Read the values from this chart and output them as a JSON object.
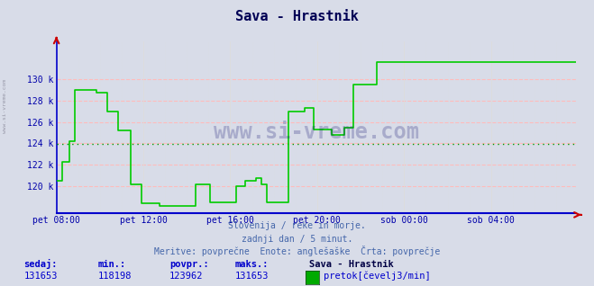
{
  "title": "Sava - Hrastnik",
  "bg_color": "#d8dce8",
  "line_color": "#00cc00",
  "avg_line_color": "#009900",
  "grid_color_h": "#ffbbbb",
  "grid_color_v": "#dddddd",
  "ylabel_color": "#0000aa",
  "xlabel_color": "#0000aa",
  "title_color": "#000055",
  "watermark": "www.si-vreme.com",
  "watermark_color": "#000066",
  "subtitle1": "Slovenija / reke in morje.",
  "subtitle2": "zadnji dan / 5 minut.",
  "subtitle3": "Meritve: povprečne  Enote: anglešaške  Črta: povprečje",
  "subtitle_color": "#4466aa",
  "footer_label1": "sedaj:",
  "footer_label2": "min.:",
  "footer_label3": "povpr.:",
  "footer_label4": "maks.:",
  "footer_val1": "131653",
  "footer_val2": "118198",
  "footer_val3": "123962",
  "footer_val4": "131653",
  "footer_series_name": "Sava - Hrastnik",
  "footer_unit": "pretok[čevelj3/min]",
  "footer_color": "#0000cc",
  "legend_color": "#00aa00",
  "avg_value": 123962,
  "ylim_min": 117500,
  "ylim_max": 133500,
  "yticks": [
    120000,
    122000,
    124000,
    126000,
    128000,
    130000
  ],
  "ytick_labels": [
    "120 k",
    "122 k",
    "124 k",
    "126 k",
    "128 k",
    "130 k"
  ],
  "x_tick_positions": [
    0,
    48,
    96,
    144,
    192,
    240
  ],
  "x_tick_labels": [
    "pet 08:00",
    "pet 12:00",
    "pet 16:00",
    "pet 20:00",
    "sob 00:00",
    "sob 04:00"
  ],
  "data_y": [
    120500,
    120500,
    120500,
    122300,
    122300,
    122300,
    122300,
    124200,
    124200,
    124200,
    129000,
    129000,
    129000,
    129000,
    129000,
    129000,
    129000,
    129000,
    129000,
    129000,
    129000,
    129000,
    128700,
    128700,
    128700,
    128700,
    128700,
    128700,
    127000,
    127000,
    127000,
    127000,
    127000,
    127000,
    125200,
    125200,
    125200,
    125200,
    125200,
    125200,
    125200,
    120200,
    120200,
    120200,
    120200,
    120200,
    120200,
    118400,
    118400,
    118400,
    118400,
    118400,
    118400,
    118400,
    118400,
    118400,
    118400,
    118200,
    118200,
    118200,
    118200,
    118200,
    118200,
    118200,
    118200,
    118200,
    118200,
    118200,
    118200,
    118200,
    118200,
    118200,
    118200,
    118200,
    118200,
    118200,
    118200,
    120200,
    120200,
    120200,
    120200,
    120200,
    120200,
    120200,
    120200,
    118500,
    118500,
    118500,
    118500,
    118500,
    118500,
    118500,
    118500,
    118500,
    118500,
    118500,
    118500,
    118500,
    118500,
    120000,
    120000,
    120000,
    120000,
    120000,
    120500,
    120500,
    120500,
    120500,
    120500,
    120500,
    120800,
    120800,
    120800,
    120200,
    120200,
    120200,
    118500,
    118500,
    118500,
    118500,
    118500,
    118500,
    118500,
    118500,
    118500,
    118500,
    118500,
    118500,
    127000,
    127000,
    127000,
    127000,
    127000,
    127000,
    127000,
    127000,
    127000,
    127300,
    127300,
    127300,
    127300,
    127300,
    125300,
    125300,
    125300,
    125300,
    125300,
    125300,
    125300,
    125300,
    125300,
    125300,
    124800,
    124800,
    124800,
    124800,
    124800,
    124800,
    124800,
    125500,
    125500,
    125500,
    125500,
    125500,
    129500,
    129500,
    129500,
    129500,
    129500,
    129500,
    129500,
    129500,
    129500,
    129500,
    129500,
    129500,
    129500,
    131600,
    131600,
    131600,
    131600,
    131600,
    131600,
    131600,
    131600,
    131600,
    131600,
    131600,
    131600,
    131600,
    131600,
    131600,
    131600,
    131600,
    131600,
    131600,
    131600,
    131600,
    131600,
    131600,
    131600,
    131600,
    131600,
    131600,
    131600,
    131600,
    131600,
    131600,
    131600,
    131600,
    131600,
    131600,
    131600,
    131600,
    131600,
    131600,
    131600,
    131600,
    131600,
    131600,
    131600,
    131600,
    131600,
    131600,
    131600,
    131600,
    131600
  ]
}
